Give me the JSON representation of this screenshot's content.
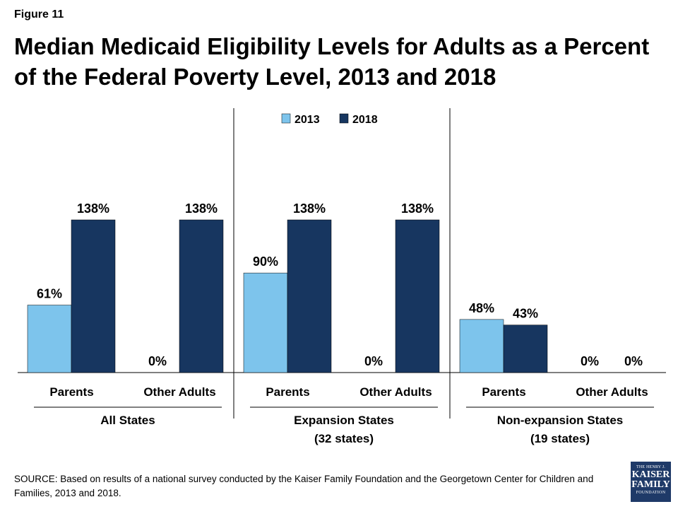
{
  "figure_label": "Figure 11",
  "title": "Median Medicaid Eligibility Levels for Adults as a Percent of the Federal Poverty Level, 2013 and 2018",
  "source": "SOURCE: Based on results of a national survey conducted by the Kaiser Family Foundation and the Georgetown Center for Children and Families, 2013 and 2018.",
  "logo": {
    "line1": "THE HENRY J.",
    "line2": "KAISER",
    "line3": "FAMILY",
    "line4": "FOUNDATION"
  },
  "colors": {
    "series_2013": "#7dc4ec",
    "series_2018": "#173660",
    "logo_bg": "#1f3a68"
  },
  "chart_data": {
    "type": "bar",
    "legend_position": "top",
    "ylim": [
      0,
      150
    ],
    "grid": false,
    "series": [
      {
        "name": "2013",
        "color": "#7dc4ec"
      },
      {
        "name": "2018",
        "color": "#173660"
      }
    ],
    "groups": [
      {
        "name": "All States",
        "subtitle": "",
        "categories": [
          "Parents",
          "Other Adults"
        ],
        "values": {
          "2013": [
            61,
            0
          ],
          "2018": [
            138,
            138
          ]
        },
        "labels": {
          "2013": [
            "61%",
            "0%"
          ],
          "2018": [
            "138%",
            "138%"
          ]
        }
      },
      {
        "name": "Expansion States",
        "subtitle": "(32 states)",
        "categories": [
          "Parents",
          "Other Adults"
        ],
        "values": {
          "2013": [
            90,
            0
          ],
          "2018": [
            138,
            138
          ]
        },
        "labels": {
          "2013": [
            "90%",
            "0%"
          ],
          "2018": [
            "138%",
            "138%"
          ]
        }
      },
      {
        "name": "Non-expansion States",
        "subtitle": "(19 states)",
        "categories": [
          "Parents",
          "Other Adults"
        ],
        "values": {
          "2013": [
            48,
            0
          ],
          "2018": [
            43,
            0
          ]
        },
        "labels": {
          "2013": [
            "48%",
            "0%"
          ],
          "2018": [
            "43%",
            "0%"
          ]
        }
      }
    ]
  }
}
